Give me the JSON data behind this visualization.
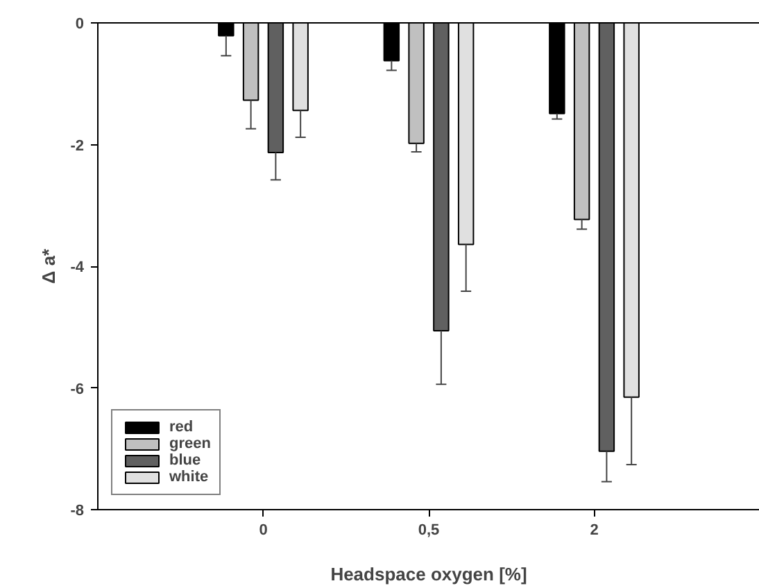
{
  "chart_data": {
    "type": "bar",
    "xlabel": "Headspace oxygen [%]",
    "ylabel": "Δ a*",
    "categories": [
      "0",
      "0,5",
      "2"
    ],
    "series": [
      {
        "name": "red",
        "color": "#000000",
        "values": [
          -0.21,
          -0.62,
          -1.49
        ],
        "errors": [
          [
            -0.54,
            -0.21
          ],
          [
            -0.78,
            -0.62
          ],
          [
            -1.58,
            -1.49
          ]
        ]
      },
      {
        "name": "green",
        "color": "#c0c0c0",
        "values": [
          -1.27,
          -1.98,
          -3.23
        ],
        "errors": [
          [
            -1.74,
            -1.27
          ],
          [
            -2.12,
            -1.98
          ],
          [
            -3.39,
            -3.23
          ]
        ]
      },
      {
        "name": "blue",
        "color": "#606060",
        "values": [
          -2.13,
          -5.06,
          -7.04
        ],
        "errors": [
          [
            -2.58,
            -2.13
          ],
          [
            -5.94,
            -5.06
          ],
          [
            -7.54,
            -7.04
          ]
        ]
      },
      {
        "name": "white",
        "color": "#e0e0e0",
        "values": [
          -1.44,
          -3.64,
          -6.15
        ],
        "errors": [
          [
            -1.88,
            -1.44
          ],
          [
            -4.41,
            -3.64
          ],
          [
            -7.26,
            -6.15
          ]
        ]
      }
    ],
    "ylim": [
      -8,
      0
    ],
    "yticks": [
      -8,
      -6,
      -4,
      -2,
      0
    ],
    "grid": false,
    "legend": "bottom left"
  }
}
